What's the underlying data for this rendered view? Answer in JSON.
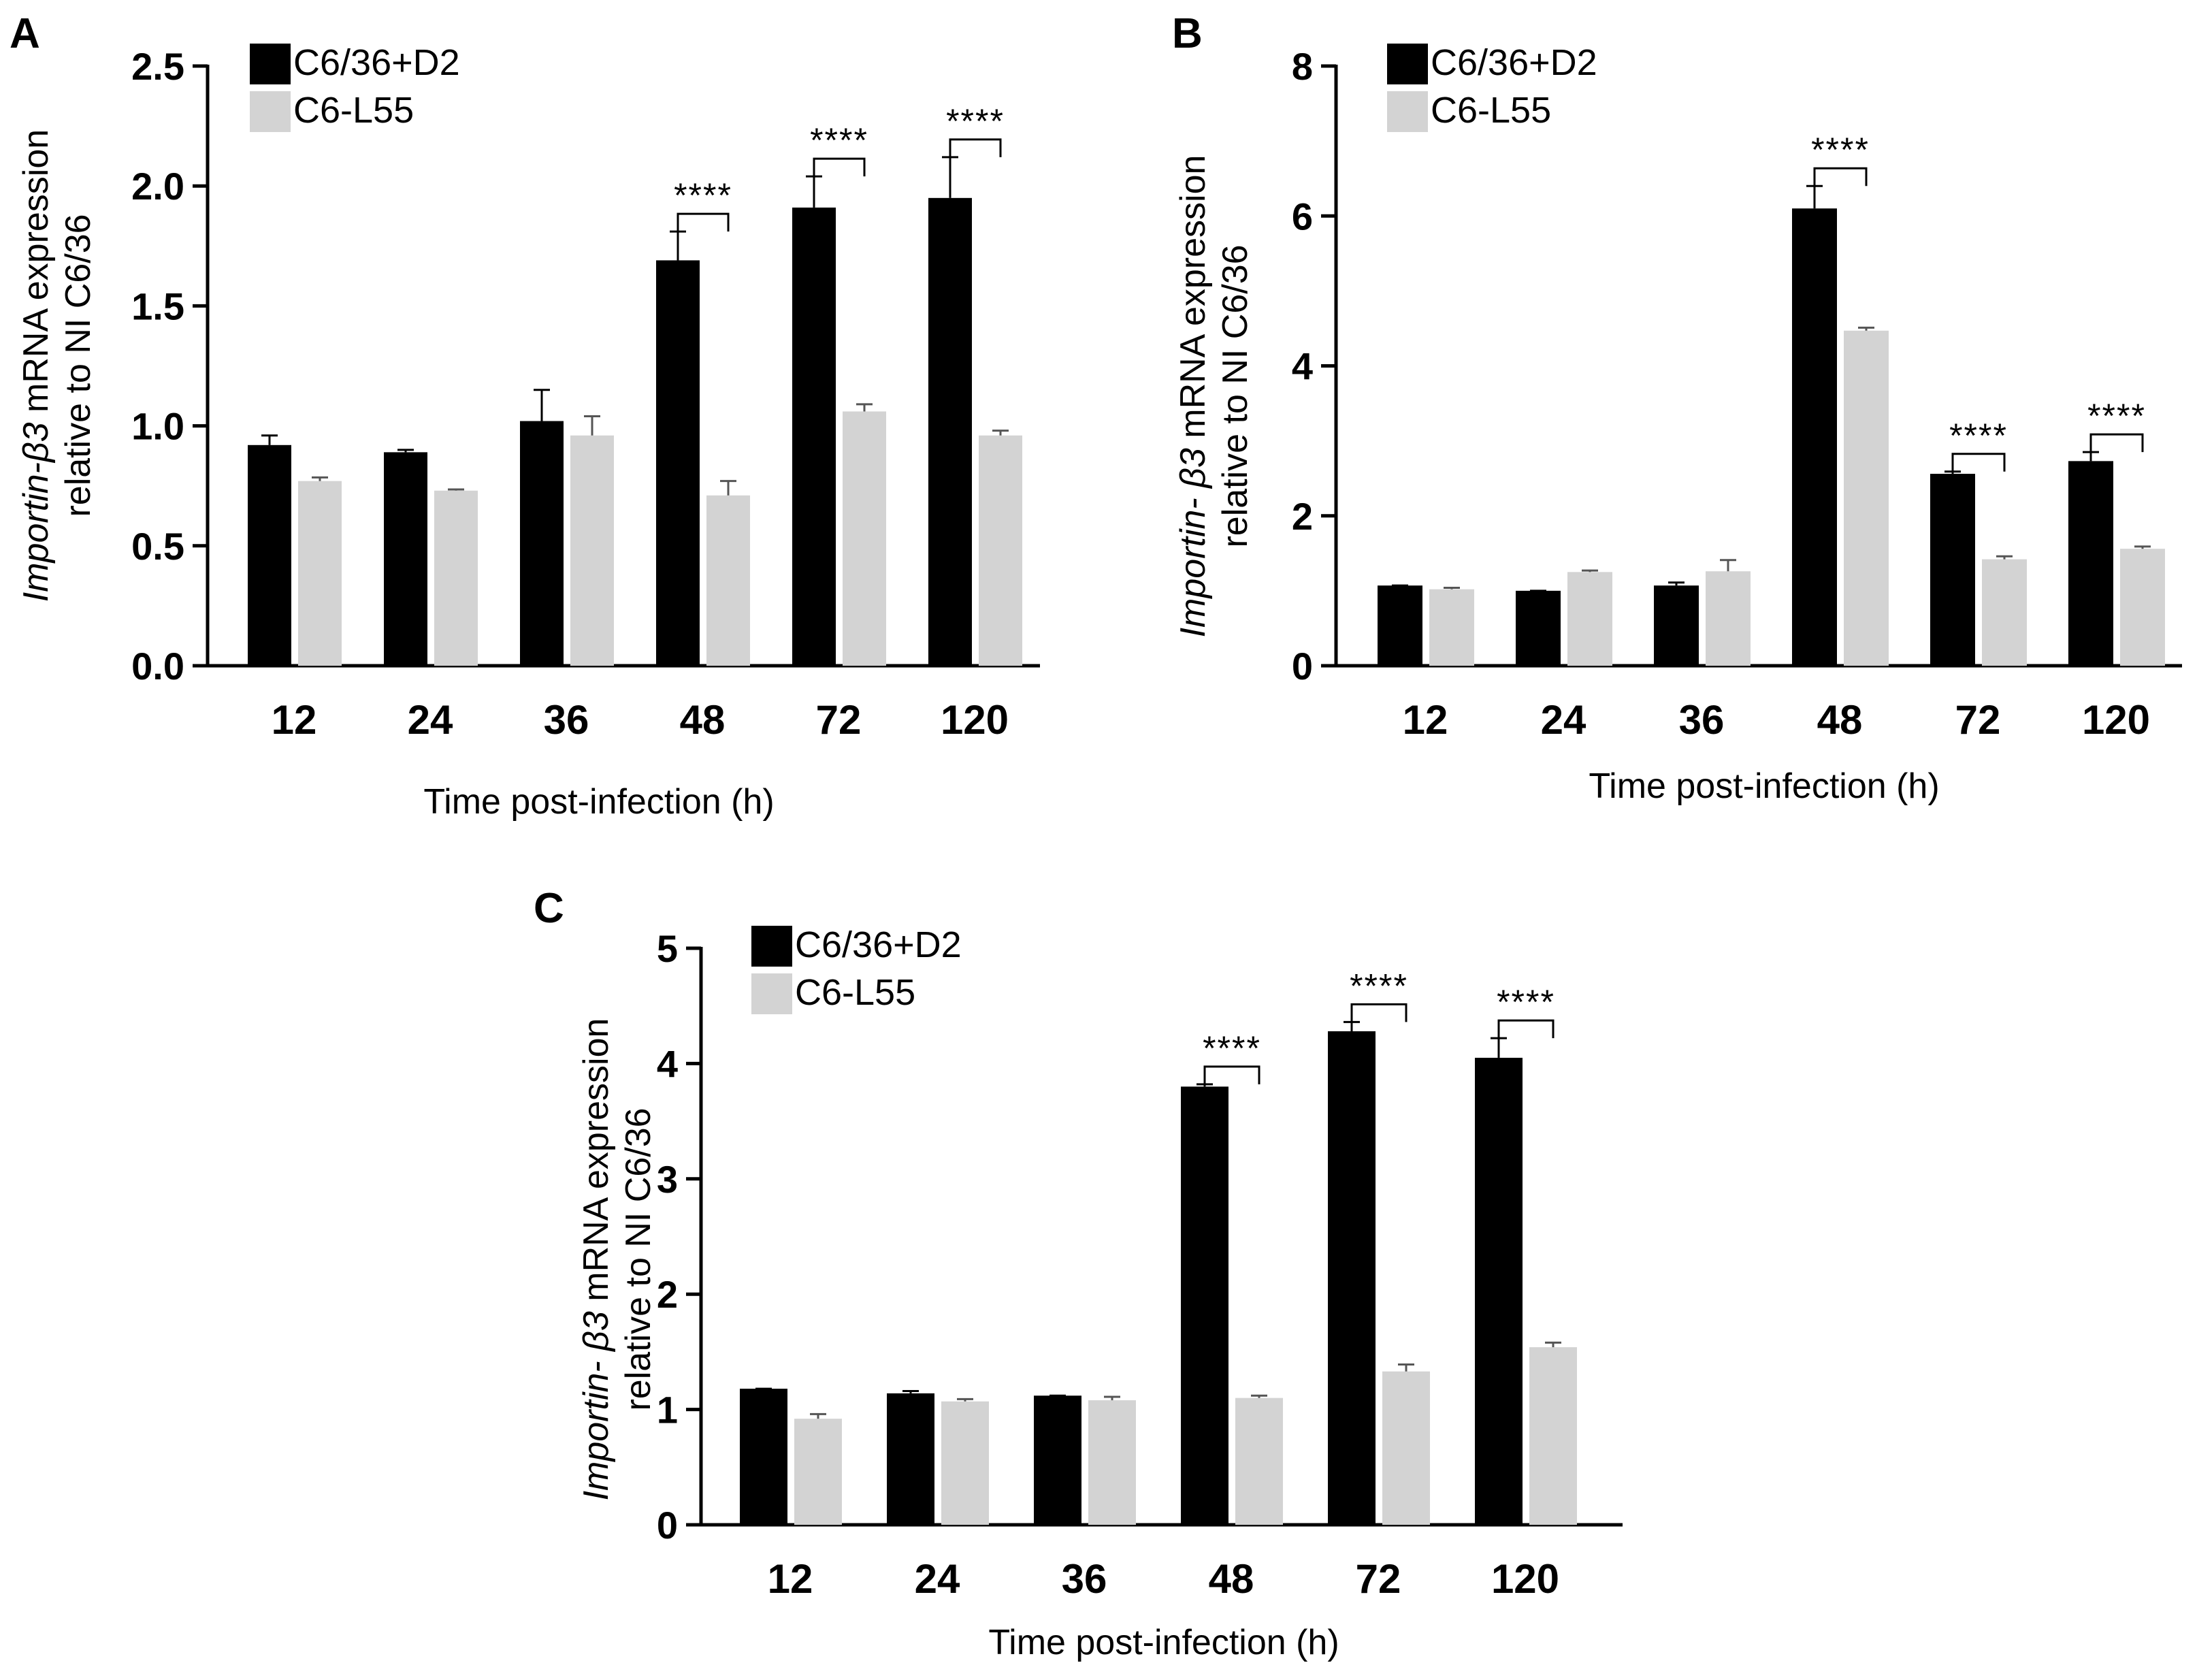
{
  "colors": {
    "series1": "#000000",
    "series2": "#d3d3d3"
  },
  "chart_data": [
    {
      "type": "bar",
      "panel_label": "A",
      "categories": [
        "12",
        "24",
        "36",
        "48",
        "72",
        "120"
      ],
      "series": [
        {
          "name": "C6/36+D2",
          "values": [
            0.92,
            0.89,
            1.02,
            1.69,
            1.91,
            1.95
          ],
          "errors": [
            0.04,
            0.01,
            0.13,
            0.12,
            0.13,
            0.17
          ]
        },
        {
          "name": "C6-L55",
          "values": [
            0.77,
            0.73,
            0.96,
            0.71,
            1.06,
            0.96
          ],
          "errors": [
            0.015,
            0.005,
            0.08,
            0.06,
            0.03,
            0.02
          ]
        }
      ],
      "significance": [
        {
          "category": "48",
          "label": "****"
        },
        {
          "category": "72",
          "label": "****"
        },
        {
          "category": "120",
          "label": "****"
        }
      ],
      "yticks": [
        "0.0",
        "0.5",
        "1.0",
        "1.5",
        "2.0",
        "2.5"
      ],
      "ylim": [
        0,
        2.5
      ],
      "ylabel_italic": "Importin-β3",
      "ylabel_rest": " mRNA expression",
      "ylabel_line2": "relative to NI C6/36",
      "xlabel": "Time post-infection  (h)"
    },
    {
      "type": "bar",
      "panel_label": "B",
      "categories": [
        "12",
        "24",
        "36",
        "48",
        "72",
        "120"
      ],
      "series": [
        {
          "name": "C6/36+D2",
          "values": [
            1.07,
            1.0,
            1.07,
            6.1,
            2.56,
            2.73
          ],
          "errors": [
            0.0,
            0.0,
            0.04,
            0.3,
            0.03,
            0.12
          ]
        },
        {
          "name": "C6-L55",
          "values": [
            1.02,
            1.25,
            1.26,
            4.47,
            1.42,
            1.56
          ],
          "errors": [
            0.02,
            0.02,
            0.15,
            0.04,
            0.04,
            0.03
          ]
        }
      ],
      "significance": [
        {
          "category": "48",
          "label": "****"
        },
        {
          "category": "72",
          "label": "****"
        },
        {
          "category": "120",
          "label": "****"
        }
      ],
      "yticks": [
        "0",
        "2",
        "4",
        "6",
        "8"
      ],
      "ylim": [
        0,
        8
      ],
      "ylabel_italic": "Importin- β3",
      "ylabel_rest": " mRNA expression",
      "ylabel_line2": "relative to NI C6/36",
      "xlabel": "Time post-infection  (h)"
    },
    {
      "type": "bar",
      "panel_label": "C",
      "categories": [
        "12",
        "24",
        "36",
        "48",
        "72",
        "120"
      ],
      "series": [
        {
          "name": "C6/36+D2",
          "values": [
            1.18,
            1.14,
            1.12,
            3.8,
            4.28,
            4.05
          ],
          "errors": [
            0.0,
            0.02,
            0.0,
            0.02,
            0.08,
            0.17
          ]
        },
        {
          "name": "C6-L55",
          "values": [
            0.92,
            1.07,
            1.08,
            1.1,
            1.33,
            1.54
          ],
          "errors": [
            0.04,
            0.02,
            0.03,
            0.02,
            0.06,
            0.04
          ]
        }
      ],
      "significance": [
        {
          "category": "48",
          "label": "****"
        },
        {
          "category": "72",
          "label": "****"
        },
        {
          "category": "120",
          "label": "****"
        }
      ],
      "yticks": [
        "0",
        "1",
        "2",
        "3",
        "4",
        "5"
      ],
      "ylim": [
        0,
        5
      ],
      "ylabel_italic": "Importin- β3",
      "ylabel_rest": " mRNA expression",
      "ylabel_line2": "relative to NI C6/36",
      "xlabel": "Time post-infection  (h)"
    }
  ]
}
